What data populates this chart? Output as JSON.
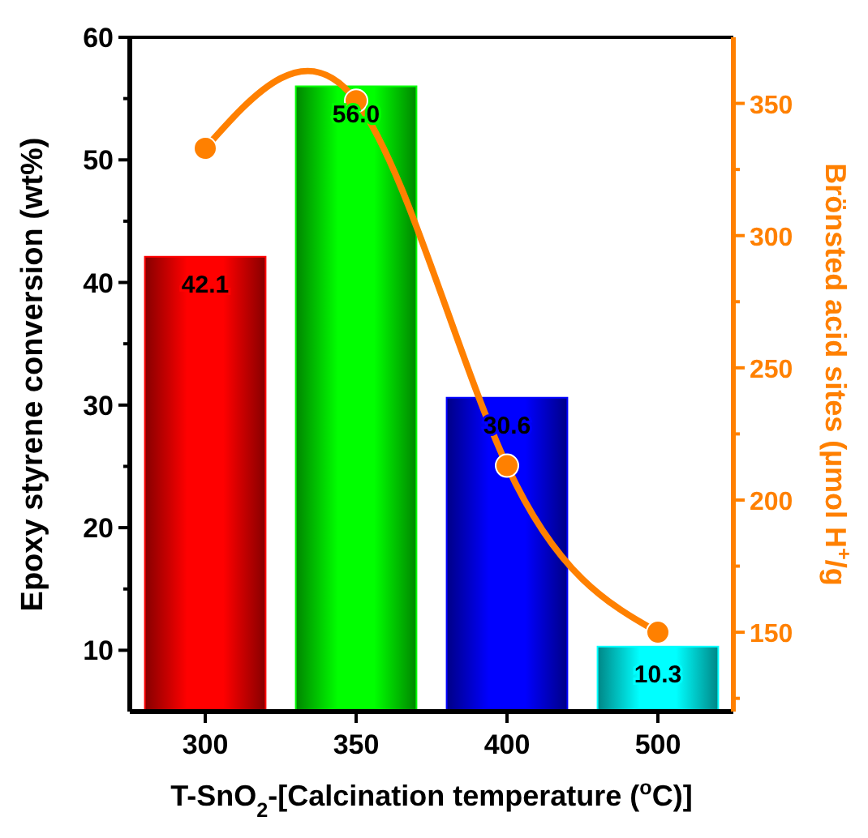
{
  "chart_data": {
    "type": "bar",
    "xlabel": "T-SnO$_{2}$-[Calcination temperature ($^{o}$C)]",
    "ylabel": "Epoxy styrene conversion (wt%)",
    "y2label": "Brönsted acid sites (µmol H$^{+}$/g",
    "categories": [
      "300",
      "350",
      "400",
      "500"
    ],
    "ylim": [
      5,
      60
    ],
    "yticks": [
      10,
      20,
      30,
      40,
      50,
      60
    ],
    "y2lim": [
      120,
      375
    ],
    "y2ticks": [
      150,
      200,
      250,
      300,
      350
    ],
    "series": [
      {
        "colors": [
          "#ff0000",
          "#00ff00",
          "#0000ff",
          "#00ffff"
        ],
        "values": [
          42.1,
          56.0,
          30.6,
          10.3
        ],
        "value_labels": [
          "42.1",
          "56.0",
          "30.6",
          "10.3"
        ]
      },
      {
        "type": "line",
        "axis": "y2",
        "color": "#ff8000",
        "marker": "circle",
        "values": [
          333,
          351,
          213,
          150
        ]
      }
    ]
  }
}
